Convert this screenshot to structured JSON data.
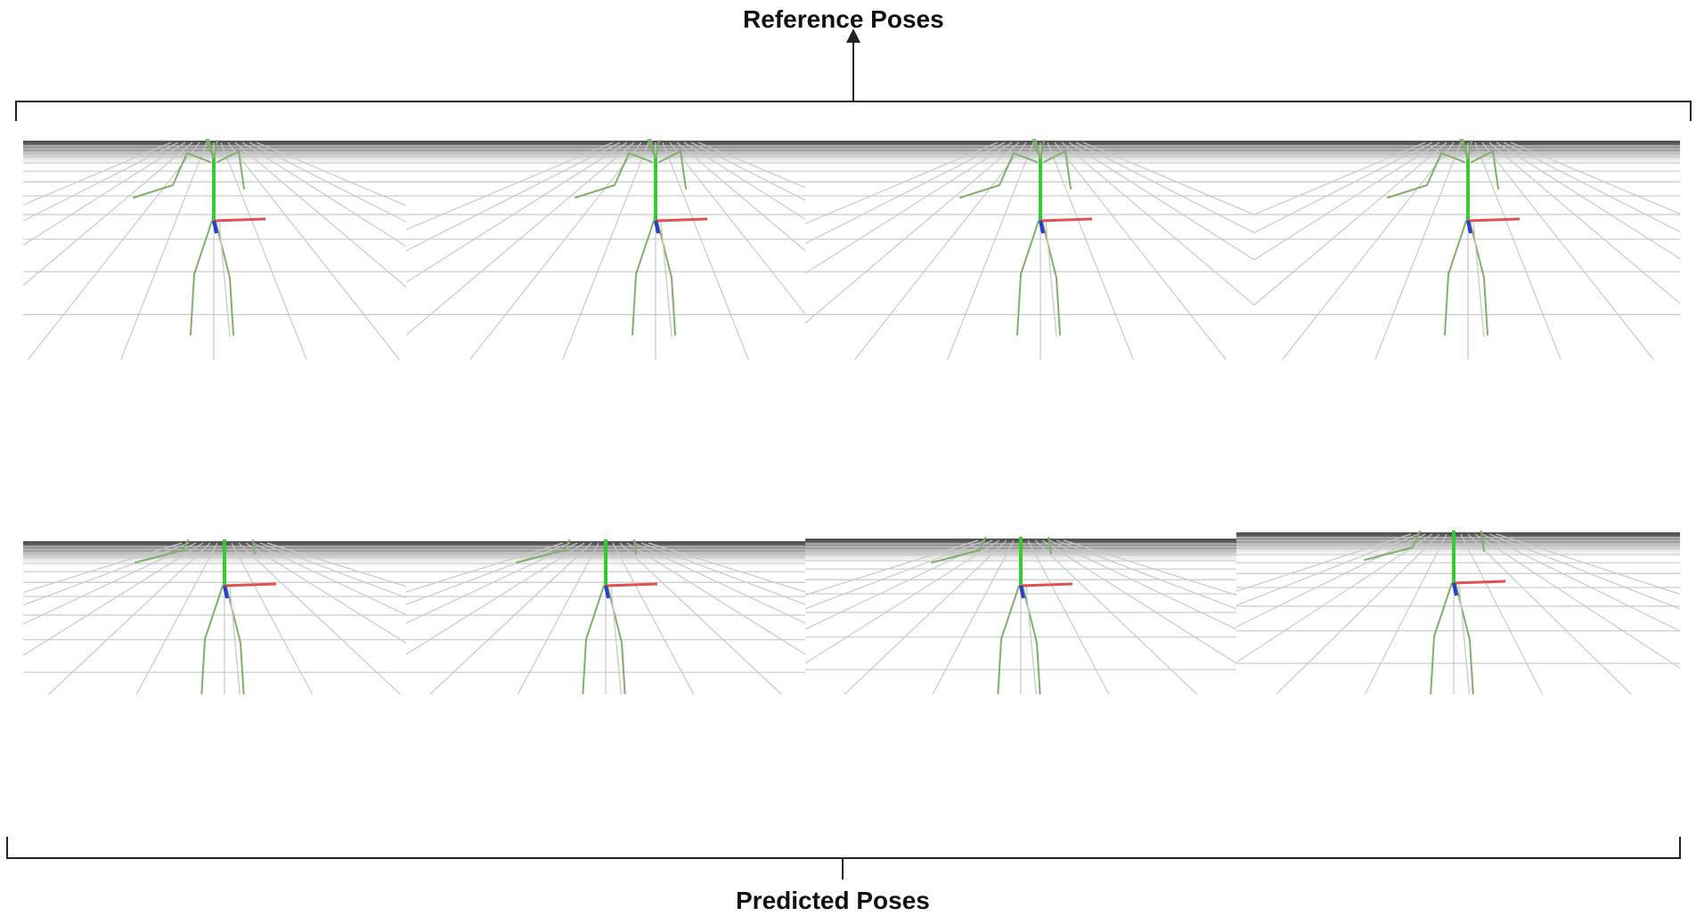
{
  "labels": {
    "reference": "Reference Poses",
    "predicted": "Predicted Poses"
  },
  "colors": {
    "bracket": "#222222",
    "skeleton": "#7fb06a",
    "spine": "#33cc33",
    "x_axis": "#e05050",
    "z_axis": "#2a3bd0",
    "grid": "#c9c9c9",
    "horizon": "#555555"
  },
  "rows": [
    {
      "name": "reference",
      "panels": 4
    },
    {
      "name": "predicted",
      "panels": 4
    }
  ]
}
